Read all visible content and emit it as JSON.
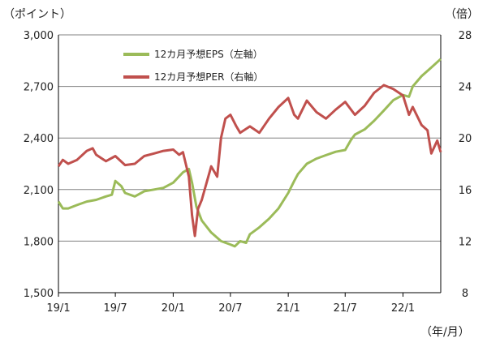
{
  "chart_data": {
    "type": "line",
    "y_left_unit": "（ポイント）",
    "y_right_unit": "（倍）",
    "x_unit": "（年/月）",
    "x_ticks": [
      "19/1",
      "19/7",
      "20/1",
      "20/7",
      "21/1",
      "21/7",
      "22/1"
    ],
    "y_left_ticks": [
      "1,500",
      "1,800",
      "2,100",
      "2,400",
      "2,700",
      "3,000"
    ],
    "y_right_ticks": [
      "8",
      "12",
      "16",
      "20",
      "24",
      "28"
    ],
    "y_left_range": [
      1500,
      3000
    ],
    "y_right_range": [
      8,
      28
    ],
    "x_range": [
      "2019-01",
      "2022-05"
    ],
    "grid": "horizontal",
    "legend_position": "top-left inside plot",
    "series": [
      {
        "name": "12カ月予想EPS（左軸）",
        "axis": "left",
        "color": "#9bbb59",
        "points": [
          [
            "2019-01",
            2030
          ],
          [
            "2019-01-15",
            1990
          ],
          [
            "2019-02",
            1990
          ],
          [
            "2019-03",
            2010
          ],
          [
            "2019-04",
            2030
          ],
          [
            "2019-05",
            2040
          ],
          [
            "2019-06",
            2060
          ],
          [
            "2019-06-20",
            2070
          ],
          [
            "2019-07",
            2150
          ],
          [
            "2019-07-20",
            2120
          ],
          [
            "2019-08",
            2080
          ],
          [
            "2019-09",
            2060
          ],
          [
            "2019-10",
            2090
          ],
          [
            "2019-11",
            2100
          ],
          [
            "2019-12",
            2110
          ],
          [
            "2020-01",
            2140
          ],
          [
            "2020-02",
            2200
          ],
          [
            "2020-02-20",
            2220
          ],
          [
            "2020-03",
            2140
          ],
          [
            "2020-03-15",
            2000
          ],
          [
            "2020-04",
            1920
          ],
          [
            "2020-05",
            1850
          ],
          [
            "2020-06",
            1800
          ],
          [
            "2020-07",
            1780
          ],
          [
            "2020-07-15",
            1770
          ],
          [
            "2020-08",
            1800
          ],
          [
            "2020-08-20",
            1790
          ],
          [
            "2020-09",
            1840
          ],
          [
            "2020-10",
            1880
          ],
          [
            "2020-11",
            1930
          ],
          [
            "2020-12",
            1990
          ],
          [
            "2021-01",
            2080
          ],
          [
            "2021-01-20",
            2150
          ],
          [
            "2021-02",
            2190
          ],
          [
            "2021-03",
            2250
          ],
          [
            "2021-04",
            2280
          ],
          [
            "2021-05",
            2300
          ],
          [
            "2021-06",
            2320
          ],
          [
            "2021-07",
            2330
          ],
          [
            "2021-07-20",
            2390
          ],
          [
            "2021-08",
            2420
          ],
          [
            "2021-09",
            2450
          ],
          [
            "2021-10",
            2500
          ],
          [
            "2021-11",
            2560
          ],
          [
            "2021-12",
            2620
          ],
          [
            "2022-01",
            2650
          ],
          [
            "2022-01-20",
            2640
          ],
          [
            "2022-02",
            2700
          ],
          [
            "2022-03",
            2760
          ],
          [
            "2022-04",
            2810
          ],
          [
            "2022-05",
            2860
          ]
        ]
      },
      {
        "name": "12カ月予想PER（右軸）",
        "axis": "right",
        "color": "#c0504d",
        "points": [
          [
            "2019-01",
            17.8
          ],
          [
            "2019-01-15",
            18.3
          ],
          [
            "2019-02",
            18.0
          ],
          [
            "2019-03",
            18.3
          ],
          [
            "2019-04",
            19.0
          ],
          [
            "2019-04-20",
            19.2
          ],
          [
            "2019-05",
            18.7
          ],
          [
            "2019-06",
            18.2
          ],
          [
            "2019-07",
            18.6
          ],
          [
            "2019-08",
            17.9
          ],
          [
            "2019-09",
            18.0
          ],
          [
            "2019-10",
            18.6
          ],
          [
            "2019-11",
            18.8
          ],
          [
            "2019-12",
            19.0
          ],
          [
            "2020-01",
            19.1
          ],
          [
            "2020-01-20",
            18.7
          ],
          [
            "2020-02",
            18.9
          ],
          [
            "2020-02-20",
            17.0
          ],
          [
            "2020-03",
            14.0
          ],
          [
            "2020-03-10",
            12.4
          ],
          [
            "2020-03-20",
            14.5
          ],
          [
            "2020-04",
            15.2
          ],
          [
            "2020-05",
            17.8
          ],
          [
            "2020-05-20",
            17.0
          ],
          [
            "2020-06",
            20.0
          ],
          [
            "2020-06-15",
            21.5
          ],
          [
            "2020-07",
            21.8
          ],
          [
            "2020-07-20",
            20.9
          ],
          [
            "2020-08",
            20.4
          ],
          [
            "2020-09",
            20.9
          ],
          [
            "2020-10",
            20.4
          ],
          [
            "2020-11",
            21.5
          ],
          [
            "2020-12",
            22.4
          ],
          [
            "2021-01",
            23.1
          ],
          [
            "2021-01-20",
            21.8
          ],
          [
            "2021-02",
            21.5
          ],
          [
            "2021-03",
            22.9
          ],
          [
            "2021-04",
            22.0
          ],
          [
            "2021-05",
            21.5
          ],
          [
            "2021-06",
            22.2
          ],
          [
            "2021-07",
            22.8
          ],
          [
            "2021-08",
            21.8
          ],
          [
            "2021-09",
            22.5
          ],
          [
            "2021-10",
            23.5
          ],
          [
            "2021-11",
            24.1
          ],
          [
            "2021-12",
            23.8
          ],
          [
            "2022-01",
            23.3
          ],
          [
            "2022-01-20",
            21.8
          ],
          [
            "2022-02",
            22.4
          ],
          [
            "2022-03",
            21.0
          ],
          [
            "2022-03-20",
            20.6
          ],
          [
            "2022-04",
            18.8
          ],
          [
            "2022-04-20",
            19.8
          ],
          [
            "2022-05",
            18.9
          ]
        ]
      }
    ]
  }
}
